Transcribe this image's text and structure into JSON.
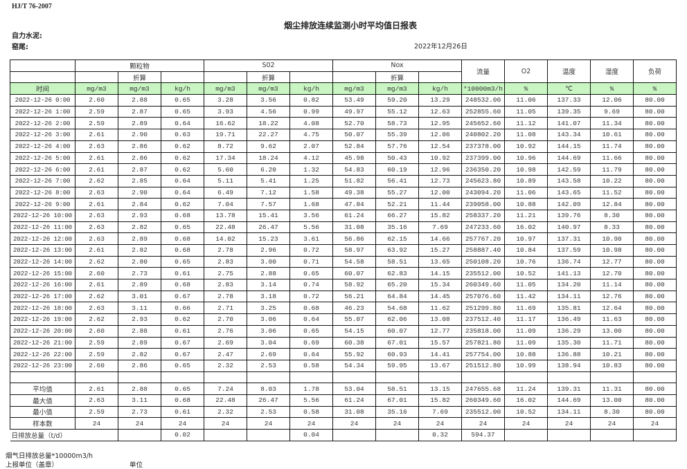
{
  "header": {
    "standard": "HJ/T  76-2007",
    "title": "烟尘排放连续监测小时平均值日报表",
    "company": "自力水泥:",
    "kiln": "窑尾:",
    "date": "2022年12月26日"
  },
  "table": {
    "groups": [
      "颗粒物",
      "S02",
      "Nox"
    ],
    "converted_label": "折算",
    "single_headers": [
      "流量",
      "O2",
      "温度",
      "湿度",
      "负荷"
    ],
    "units": [
      "时间",
      "mg/m3",
      "mg/m3",
      "kg/h",
      "mg/m3",
      "mg/m3",
      "kg/h",
      "mg/m3",
      "mg/m3",
      "kg/h",
      "*10000m3/h",
      "%",
      "℃",
      "%",
      "%"
    ],
    "rows": [
      [
        "2022-12-26 0:00",
        "2.60",
        "2.88",
        "0.65",
        "3.28",
        "3.56",
        "0.82",
        "53.49",
        "59.20",
        "13.29",
        "248532.00",
        "11.06",
        "137.33",
        "12.06",
        "80.00"
      ],
      [
        "2022-12-26 1:00",
        "2.59",
        "2.87",
        "0.65",
        "3.93",
        "4.56",
        "0.99",
        "49.97",
        "55.12",
        "12.63",
        "252855.60",
        "11.05",
        "139.35",
        "9.69",
        "80.00"
      ],
      [
        "2022-12-26 2:00",
        "2.59",
        "2.89",
        "0.64",
        "16.62",
        "18.22",
        "4.08",
        "52.70",
        "58.73",
        "12.95",
        "245652.60",
        "11.12",
        "141.07",
        "11.34",
        "80.00"
      ],
      [
        "2022-12-26 3:00",
        "2.61",
        "2.90",
        "0.63",
        "19.71",
        "22.27",
        "4.75",
        "50.07",
        "55.39",
        "12.06",
        "240802.20",
        "11.08",
        "143.34",
        "10.61",
        "80.00"
      ],
      [
        "2022-12-26 4:00",
        "2.63",
        "2.86",
        "0.62",
        "8.72",
        "9.62",
        "2.07",
        "52.84",
        "57.76",
        "12.54",
        "237378.00",
        "10.92",
        "144.15",
        "11.74",
        "80.00"
      ],
      [
        "2022-12-26 5:00",
        "2.61",
        "2.86",
        "0.62",
        "17.34",
        "18.24",
        "4.12",
        "45.98",
        "50.43",
        "10.92",
        "237399.00",
        "10.96",
        "144.69",
        "11.66",
        "80.00"
      ],
      [
        "2022-12-26 6:00",
        "2.61",
        "2.87",
        "0.62",
        "5.60",
        "6.20",
        "1.32",
        "54.83",
        "60.19",
        "12.96",
        "236350.20",
        "10.98",
        "142.59",
        "11.79",
        "80.00"
      ],
      [
        "2022-12-26 7:00",
        "2.62",
        "2.85",
        "0.64",
        "5.11",
        "5.41",
        "1.25",
        "51.82",
        "56.41",
        "12.73",
        "245623.80",
        "10.89",
        "143.58",
        "10.22",
        "80.00"
      ],
      [
        "2022-12-26 8:00",
        "2.63",
        "2.90",
        "0.64",
        "6.49",
        "7.12",
        "1.58",
        "49.38",
        "55.27",
        "12.00",
        "243094.20",
        "11.06",
        "143.65",
        "11.52",
        "80.00"
      ],
      [
        "2022-12-26 9:00",
        "2.61",
        "2.84",
        "0.62",
        "7.04",
        "7.57",
        "1.68",
        "47.84",
        "52.21",
        "11.44",
        "239058.00",
        "10.88",
        "142.09",
        "12.84",
        "80.00"
      ],
      [
        "2022-12-26 10:00",
        "2.63",
        "2.93",
        "0.68",
        "13.78",
        "15.41",
        "3.56",
        "61.24",
        "66.27",
        "15.82",
        "258337.20",
        "11.21",
        "139.76",
        "8.30",
        "80.00"
      ],
      [
        "2022-12-26 11:00",
        "2.63",
        "2.82",
        "0.65",
        "22.48",
        "26.47",
        "5.56",
        "31.08",
        "35.16",
        "7.69",
        "247233.60",
        "16.02",
        "140.97",
        "8.33",
        "80.00"
      ],
      [
        "2022-12-26 12:00",
        "2.63",
        "2.89",
        "0.68",
        "14.02",
        "15.23",
        "3.61",
        "56.86",
        "62.15",
        "14.66",
        "257767.20",
        "10.97",
        "137.31",
        "10.90",
        "80.00"
      ],
      [
        "2022-12-26 13:00",
        "2.61",
        "2.82",
        "0.68",
        "2.78",
        "2.96",
        "0.72",
        "58.97",
        "63.92",
        "15.27",
        "258887.40",
        "10.84",
        "137.59",
        "10.98",
        "80.00"
      ],
      [
        "2022-12-26 14:00",
        "2.62",
        "2.80",
        "0.65",
        "2.83",
        "3.00",
        "0.71",
        "54.58",
        "58.51",
        "13.65",
        "250108.20",
        "10.76",
        "136.74",
        "12.77",
        "80.00"
      ],
      [
        "2022-12-26 15:00",
        "2.60",
        "2.73",
        "0.61",
        "2.75",
        "2.88",
        "0.65",
        "60.07",
        "62.83",
        "14.15",
        "235512.00",
        "10.52",
        "141.13",
        "12.70",
        "80.00"
      ],
      [
        "2022-12-26 16:00",
        "2.61",
        "2.89",
        "0.68",
        "2.83",
        "3.14",
        "0.74",
        "58.92",
        "65.20",
        "15.34",
        "260349.60",
        "11.05",
        "134.20",
        "11.14",
        "80.00"
      ],
      [
        "2022-12-26 17:00",
        "2.62",
        "3.01",
        "0.67",
        "2.78",
        "3.18",
        "0.72",
        "56.21",
        "64.84",
        "14.45",
        "257076.60",
        "11.42",
        "134.11",
        "12.76",
        "80.00"
      ],
      [
        "2022-12-26 18:00",
        "2.63",
        "3.11",
        "0.66",
        "2.71",
        "3.25",
        "0.68",
        "46.23",
        "54.68",
        "11.62",
        "251299.80",
        "11.69",
        "135.81",
        "12.64",
        "80.00"
      ],
      [
        "2022-12-26 19:00",
        "2.62",
        "2.93",
        "0.62",
        "2.70",
        "3.06",
        "0.64",
        "55.07",
        "62.06",
        "13.08",
        "237512.40",
        "11.17",
        "136.49",
        "11.63",
        "80.00"
      ],
      [
        "2022-12-26 20:00",
        "2.60",
        "2.88",
        "0.61",
        "2.76",
        "3.06",
        "0.65",
        "54.15",
        "60.07",
        "12.77",
        "235818.00",
        "11.09",
        "136.29",
        "13.00",
        "80.00"
      ],
      [
        "2022-12-26 21:00",
        "2.59",
        "2.89",
        "0.67",
        "2.69",
        "3.04",
        "0.69",
        "60.38",
        "67.01",
        "15.57",
        "257821.80",
        "11.09",
        "135.30",
        "11.71",
        "80.00"
      ],
      [
        "2022-12-26 22:00",
        "2.59",
        "2.82",
        "0.67",
        "2.47",
        "2.69",
        "0.64",
        "55.92",
        "60.93",
        "14.41",
        "257754.00",
        "10.88",
        "136.88",
        "10.21",
        "80.00"
      ],
      [
        "2022-12-26 23:00",
        "2.60",
        "2.86",
        "0.65",
        "2.32",
        "2.53",
        "0.58",
        "54.34",
        "59.95",
        "13.67",
        "251512.80",
        "10.99",
        "138.94",
        "10.83",
        "80.00"
      ]
    ],
    "summary": [
      [
        "平均值",
        "2.61",
        "2.88",
        "0.65",
        "7.24",
        "8.03",
        "1.78",
        "53.04",
        "58.51",
        "13.15",
        "247655.68",
        "11.24",
        "139.31",
        "11.31",
        "80.00"
      ],
      [
        "最大值",
        "2.63",
        "3.11",
        "0.68",
        "22.48",
        "26.47",
        "5.56",
        "61.24",
        "67.01",
        "15.82",
        "260349.60",
        "16.02",
        "144.69",
        "13.00",
        "80.00"
      ],
      [
        "最小值",
        "2.59",
        "2.73",
        "0.61",
        "2.32",
        "2.53",
        "0.58",
        "31.08",
        "35.16",
        "7.69",
        "235512.00",
        "10.52",
        "134.11",
        "8.30",
        "80.00"
      ],
      [
        "样本数",
        "24",
        "24",
        "24",
        "24",
        "24",
        "24",
        "24",
        "24",
        "24",
        "24",
        "24",
        "24",
        "24",
        "24"
      ]
    ],
    "daily_total": {
      "label": "日排放总量（t/d）",
      "values": [
        "",
        "0.02",
        "",
        "",
        "0.04",
        "",
        "",
        "0.32",
        "594.37",
        "",
        "",
        "",
        ""
      ]
    }
  },
  "footer": {
    "flue_gas_total": "烟气日排放总量*10000m3/h",
    "reporting_unit": "上报单位（盖章）",
    "unit": "单位"
  },
  "colors": {
    "units_row_bg": "#c8f5c2",
    "border": "#111111"
  }
}
